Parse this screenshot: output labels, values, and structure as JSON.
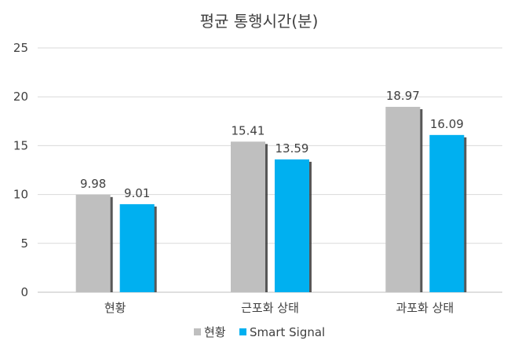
{
  "chart_data": {
    "type": "bar",
    "title": "평균 통행시간(분)",
    "categories": [
      "현황",
      "근포화 상태",
      "과포화 상태"
    ],
    "series": [
      {
        "name": "현황",
        "values": [
          9.98,
          15.41,
          18.97
        ],
        "color": "#bfbfbf",
        "labels": [
          "9.98",
          "15.41",
          "18.97"
        ]
      },
      {
        "name": "Smart Signal",
        "values": [
          9.01,
          13.59,
          16.09
        ],
        "color": "#00b0f0",
        "labels": [
          "9.01",
          "13.59",
          "16.09"
        ]
      }
    ],
    "ylim": [
      0,
      25
    ],
    "yticks": [
      "0",
      "5",
      "10",
      "15",
      "20",
      "25"
    ],
    "grid": true,
    "legend_position": "bottom"
  }
}
